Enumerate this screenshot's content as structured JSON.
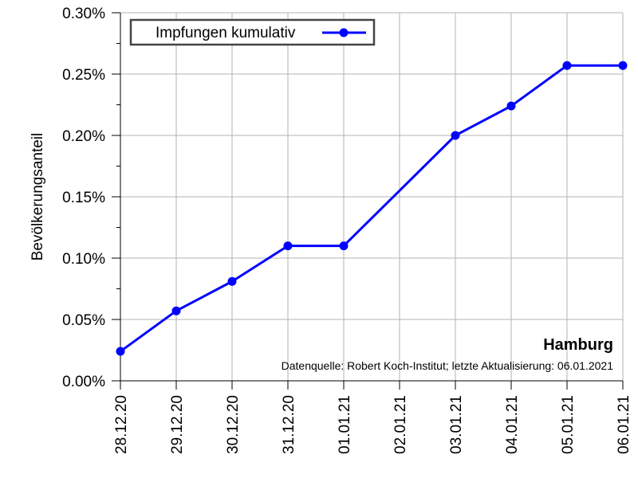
{
  "chart_data": {
    "type": "line",
    "categories": [
      "28.12.20",
      "29.12.20",
      "30.12.20",
      "31.12.20",
      "01.01.21",
      "02.01.21",
      "03.01.21",
      "04.01.21",
      "05.01.21",
      "06.01.21"
    ],
    "series": [
      {
        "name": "Impfungen kumulativ",
        "color": "#0000ff",
        "values": [
          0.024,
          0.057,
          0.081,
          0.11,
          0.11,
          0.155,
          0.2,
          0.224,
          0.257,
          0.257
        ],
        "markers": [
          true,
          true,
          true,
          true,
          true,
          false,
          true,
          true,
          true,
          true
        ]
      }
    ],
    "ylabel": "Bevölkerungsanteil",
    "xlabel": "",
    "ylim": [
      0,
      0.3
    ],
    "yticks": [
      "0.00%",
      "0.05%",
      "0.10%",
      "0.15%",
      "0.20%",
      "0.25%",
      "0.30%"
    ],
    "grid": true,
    "legend_position": "top-left",
    "annotation_title": "Hamburg",
    "annotation_source": "Datenquelle: Robert Koch-Institut; letzte Aktualisierung: 06.01.2021"
  }
}
